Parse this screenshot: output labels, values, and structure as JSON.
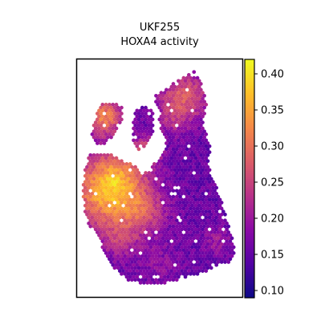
{
  "chart_data": {
    "type": "scatter",
    "title": "UKF255",
    "subtitle": "HOXA4 activity",
    "xlabel": "",
    "ylabel": "",
    "colormap": "plasma",
    "colorbar": {
      "min": 0.09,
      "max": 0.42,
      "ticks": [
        "0.10",
        "0.15",
        "0.20",
        "0.25",
        "0.30",
        "0.35",
        "0.40"
      ],
      "tick_values": [
        0.1,
        0.15,
        0.2,
        0.25,
        0.3,
        0.35,
        0.4
      ]
    },
    "grid": false,
    "plasma_stops": [
      "#0d0887",
      "#5302a3",
      "#8b0aa5",
      "#b83289",
      "#db5c68",
      "#f48849",
      "#febd2a",
      "#f0f921"
    ],
    "description_regions": [
      {
        "region": "left lobe",
        "level": "high",
        "approx_value": 0.37
      },
      {
        "region": "right lower lobe",
        "level": "low",
        "approx_value": 0.15
      },
      {
        "region": "top-right ridge",
        "level": "medium-high",
        "approx_value": 0.3
      }
    ]
  }
}
